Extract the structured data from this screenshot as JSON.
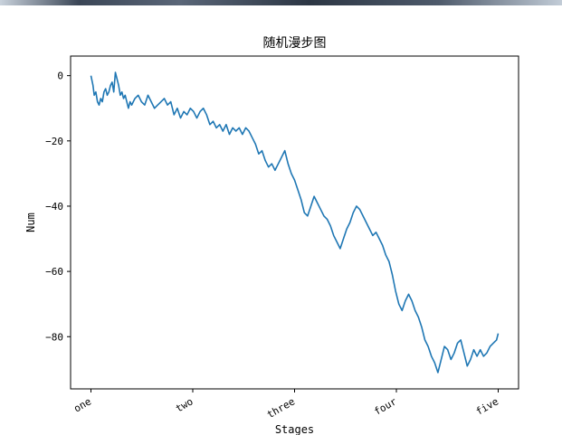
{
  "chart_data": {
    "type": "line",
    "title": "随机漫步图",
    "xlabel": "Stages",
    "ylabel": "Num",
    "xticks": [
      "one",
      "two",
      "three",
      "four",
      "five"
    ],
    "xtick_positions": [
      0,
      250,
      500,
      750,
      1000
    ],
    "xlim": [
      -50,
      1050
    ],
    "ylim": [
      -96,
      6
    ],
    "yticks": [
      0,
      -20,
      -40,
      -60,
      -80
    ],
    "ytick_labels": [
      "0",
      "−20",
      "−40",
      "−60",
      "−80"
    ],
    "grid": false,
    "series": [
      {
        "color": "#1f77b4",
        "points": [
          [
            0,
            0
          ],
          [
            5,
            -3
          ],
          [
            8,
            -6
          ],
          [
            12,
            -5
          ],
          [
            16,
            -8
          ],
          [
            20,
            -9
          ],
          [
            24,
            -7
          ],
          [
            28,
            -8
          ],
          [
            32,
            -5
          ],
          [
            36,
            -4
          ],
          [
            40,
            -6
          ],
          [
            44,
            -5
          ],
          [
            48,
            -3
          ],
          [
            52,
            -2
          ],
          [
            56,
            -5
          ],
          [
            60,
            1
          ],
          [
            64,
            -1
          ],
          [
            68,
            -3
          ],
          [
            72,
            -6
          ],
          [
            76,
            -5
          ],
          [
            80,
            -7
          ],
          [
            84,
            -6
          ],
          [
            88,
            -8
          ],
          [
            92,
            -10
          ],
          [
            96,
            -8
          ],
          [
            100,
            -9
          ],
          [
            108,
            -7
          ],
          [
            116,
            -6
          ],
          [
            124,
            -8
          ],
          [
            132,
            -9
          ],
          [
            140,
            -6
          ],
          [
            148,
            -8
          ],
          [
            156,
            -10
          ],
          [
            164,
            -9
          ],
          [
            172,
            -8
          ],
          [
            180,
            -7
          ],
          [
            188,
            -9
          ],
          [
            196,
            -8
          ],
          [
            204,
            -12
          ],
          [
            212,
            -10
          ],
          [
            220,
            -13
          ],
          [
            228,
            -11
          ],
          [
            236,
            -12
          ],
          [
            244,
            -10
          ],
          [
            252,
            -11
          ],
          [
            260,
            -13
          ],
          [
            268,
            -11
          ],
          [
            276,
            -10
          ],
          [
            284,
            -12
          ],
          [
            292,
            -15
          ],
          [
            300,
            -14
          ],
          [
            308,
            -16
          ],
          [
            316,
            -15
          ],
          [
            324,
            -17
          ],
          [
            332,
            -15
          ],
          [
            340,
            -18
          ],
          [
            348,
            -16
          ],
          [
            356,
            -17
          ],
          [
            364,
            -16
          ],
          [
            372,
            -18
          ],
          [
            380,
            -16
          ],
          [
            388,
            -17
          ],
          [
            396,
            -19
          ],
          [
            404,
            -21
          ],
          [
            412,
            -24
          ],
          [
            420,
            -23
          ],
          [
            428,
            -26
          ],
          [
            436,
            -28
          ],
          [
            444,
            -27
          ],
          [
            452,
            -29
          ],
          [
            460,
            -27
          ],
          [
            468,
            -25
          ],
          [
            476,
            -23
          ],
          [
            484,
            -27
          ],
          [
            492,
            -30
          ],
          [
            500,
            -32
          ],
          [
            508,
            -35
          ],
          [
            516,
            -38
          ],
          [
            524,
            -42
          ],
          [
            532,
            -43
          ],
          [
            540,
            -40
          ],
          [
            548,
            -37
          ],
          [
            556,
            -39
          ],
          [
            564,
            -41
          ],
          [
            572,
            -43
          ],
          [
            580,
            -44
          ],
          [
            588,
            -46
          ],
          [
            596,
            -49
          ],
          [
            604,
            -51
          ],
          [
            612,
            -53
          ],
          [
            620,
            -50
          ],
          [
            628,
            -47
          ],
          [
            636,
            -45
          ],
          [
            644,
            -42
          ],
          [
            652,
            -40
          ],
          [
            660,
            -41
          ],
          [
            668,
            -43
          ],
          [
            676,
            -45
          ],
          [
            684,
            -47
          ],
          [
            692,
            -49
          ],
          [
            700,
            -48
          ],
          [
            708,
            -50
          ],
          [
            716,
            -52
          ],
          [
            724,
            -55
          ],
          [
            732,
            -57
          ],
          [
            740,
            -61
          ],
          [
            748,
            -66
          ],
          [
            756,
            -70
          ],
          [
            764,
            -72
          ],
          [
            772,
            -69
          ],
          [
            780,
            -67
          ],
          [
            788,
            -69
          ],
          [
            796,
            -72
          ],
          [
            804,
            -74
          ],
          [
            812,
            -77
          ],
          [
            820,
            -81
          ],
          [
            828,
            -83
          ],
          [
            836,
            -86
          ],
          [
            844,
            -88
          ],
          [
            852,
            -91
          ],
          [
            860,
            -87
          ],
          [
            868,
            -83
          ],
          [
            876,
            -84
          ],
          [
            884,
            -87
          ],
          [
            892,
            -85
          ],
          [
            900,
            -82
          ],
          [
            908,
            -81
          ],
          [
            916,
            -85
          ],
          [
            924,
            -89
          ],
          [
            932,
            -87
          ],
          [
            940,
            -84
          ],
          [
            948,
            -86
          ],
          [
            956,
            -84
          ],
          [
            964,
            -86
          ],
          [
            972,
            -85
          ],
          [
            980,
            -83
          ],
          [
            988,
            -82
          ],
          [
            996,
            -81
          ],
          [
            1000,
            -79
          ]
        ]
      }
    ]
  }
}
